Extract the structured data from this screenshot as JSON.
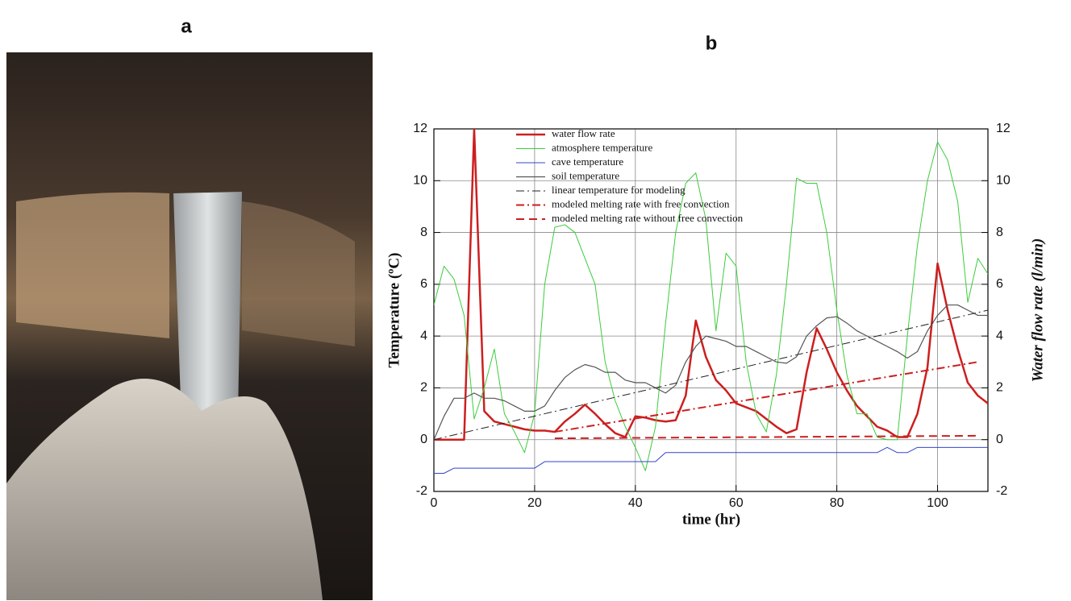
{
  "panel_labels": [
    "a",
    "b"
  ],
  "chart_data": {
    "type": "line",
    "xlabel": "time (hr)",
    "ylabel": "Temperature (ºC)",
    "y2label": "Water flow rate (l/min)",
    "x": [
      0,
      2,
      4,
      6,
      8,
      10,
      12,
      14,
      16,
      18,
      20,
      22,
      24,
      26,
      28,
      30,
      32,
      34,
      36,
      38,
      40,
      42,
      44,
      46,
      48,
      50,
      52,
      54,
      56,
      58,
      60,
      62,
      64,
      66,
      68,
      70,
      72,
      74,
      76,
      78,
      80,
      82,
      84,
      86,
      88,
      90,
      92,
      94,
      96,
      98,
      100,
      102,
      104,
      106,
      108,
      110
    ],
    "xlim": [
      0,
      110
    ],
    "xticks": [
      0,
      20,
      40,
      60,
      80,
      100
    ],
    "ylim": [
      -2,
      12
    ],
    "yticks": [
      -2,
      0,
      2,
      4,
      6,
      8,
      10,
      12
    ],
    "y2lim": [
      -2,
      12
    ],
    "y2ticks": [
      -2,
      0,
      2,
      4,
      6,
      8,
      10,
      12
    ],
    "grid": true,
    "series": [
      {
        "name": "water flow rate",
        "color": "#cc1f1f",
        "width": 2.5,
        "dash": "solid",
        "axis": "y2",
        "values": [
          0,
          0,
          0,
          0,
          12,
          1.1,
          0.7,
          0.6,
          0.5,
          0.4,
          0.35,
          0.35,
          0.3,
          0.7,
          1.0,
          1.35,
          1.0,
          0.6,
          0.25,
          0.1,
          0.9,
          0.85,
          0.75,
          0.7,
          0.75,
          1.7,
          4.6,
          3.2,
          2.3,
          1.9,
          1.4,
          1.25,
          1.1,
          0.8,
          0.5,
          0.25,
          0.4,
          2.6,
          4.3,
          3.5,
          2.6,
          1.9,
          1.3,
          0.9,
          0.5,
          0.35,
          0.1,
          0.1,
          1.0,
          2.8,
          6.8,
          5.0,
          3.5,
          2.2,
          1.7,
          1.4
        ]
      },
      {
        "name": "atmosphere temperature",
        "color": "#3ccc3c",
        "width": 1,
        "dash": "solid",
        "values": [
          5.2,
          6.7,
          6.2,
          4.8,
          0.8,
          2.0,
          3.5,
          1.0,
          0.3,
          -0.5,
          1.0,
          6.0,
          8.2,
          8.3,
          8.0,
          7.0,
          6.0,
          3.0,
          1.5,
          0.5,
          -0.3,
          -1.2,
          0.5,
          4.5,
          8.0,
          9.9,
          10.3,
          8.5,
          4.2,
          7.2,
          6.7,
          3.0,
          1.0,
          0.3,
          2.5,
          6.0,
          10.1,
          9.9,
          9.9,
          8.0,
          5.0,
          2.5,
          1.0,
          1.0,
          0.1,
          0.0,
          0.0,
          4.0,
          7.5,
          10.0,
          11.5,
          10.8,
          9.2,
          5.3,
          7.0,
          6.4
        ]
      },
      {
        "name": "cave temperature",
        "color": "#3344cc",
        "width": 1,
        "dash": "solid",
        "values": [
          -1.3,
          -1.3,
          -1.1,
          -1.1,
          -1.1,
          -1.1,
          -1.1,
          -1.1,
          -1.1,
          -1.1,
          -1.1,
          -0.85,
          -0.85,
          -0.85,
          -0.85,
          -0.85,
          -0.85,
          -0.85,
          -0.85,
          -0.85,
          -0.85,
          -0.85,
          -0.85,
          -0.5,
          -0.5,
          -0.5,
          -0.5,
          -0.5,
          -0.5,
          -0.5,
          -0.5,
          -0.5,
          -0.5,
          -0.5,
          -0.5,
          -0.5,
          -0.5,
          -0.5,
          -0.5,
          -0.5,
          -0.5,
          -0.5,
          -0.5,
          -0.5,
          -0.5,
          -0.3,
          -0.5,
          -0.5,
          -0.3,
          -0.3,
          -0.3,
          -0.3,
          -0.3,
          -0.3,
          -0.3,
          -0.3
        ]
      },
      {
        "name": "soil temperature",
        "color": "#555555",
        "width": 1.2,
        "dash": "solid",
        "values": [
          0,
          0.9,
          1.6,
          1.6,
          1.8,
          1.6,
          1.6,
          1.5,
          1.3,
          1.1,
          1.1,
          1.3,
          1.9,
          2.4,
          2.7,
          2.9,
          2.8,
          2.6,
          2.6,
          2.3,
          2.2,
          2.2,
          2.0,
          1.8,
          2.1,
          3.0,
          3.6,
          4.0,
          3.9,
          3.8,
          3.6,
          3.6,
          3.4,
          3.2,
          3.0,
          2.95,
          3.2,
          4.0,
          4.4,
          4.7,
          4.75,
          4.5,
          4.2,
          4.0,
          3.8,
          3.6,
          3.4,
          3.15,
          3.4,
          4.2,
          4.8,
          5.2,
          5.2,
          5.0,
          4.8,
          4.8
        ]
      },
      {
        "name": "linear temperature for modeling",
        "color": "#222222",
        "width": 1,
        "dash": "dashdot",
        "x": [
          0,
          110
        ],
        "values": [
          0,
          5
        ]
      },
      {
        "name": "modeled melting rate with free convection",
        "color": "#cc1f1f",
        "width": 2,
        "dash": "dashdot",
        "axis": "y2",
        "x": [
          24,
          108
        ],
        "values": [
          0.3,
          3.0
        ]
      },
      {
        "name": "modeled melting rate without free convection",
        "color": "#cc1f1f",
        "width": 2,
        "dash": "dash",
        "axis": "y2",
        "x": [
          24,
          108
        ],
        "values": [
          0.05,
          0.15
        ]
      }
    ]
  }
}
